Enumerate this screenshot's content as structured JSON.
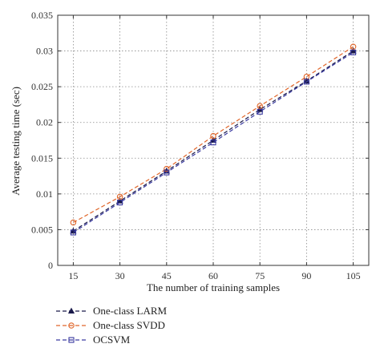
{
  "chart_data": {
    "type": "line",
    "title": "",
    "xlabel": "The number of training samples",
    "ylabel": "Average testing time (sec)",
    "x": [
      15,
      30,
      45,
      60,
      75,
      90,
      105
    ],
    "x_tick_labels": [
      "15",
      "30",
      "45",
      "60",
      "75",
      "90",
      "105"
    ],
    "y_ticks": [
      0,
      0.005,
      0.01,
      0.015,
      0.02,
      0.025,
      0.03,
      0.035
    ],
    "y_tick_labels": [
      "0",
      "0.005",
      "0.01",
      "0.015",
      "0.02",
      "0.025",
      "0.03",
      "0.035"
    ],
    "xlim": [
      10,
      110
    ],
    "ylim": [
      0,
      0.035
    ],
    "grid": true,
    "legend_position": "bottom-left below plot",
    "series": [
      {
        "name": "One-class LARM",
        "color": "#1a1a4a",
        "marker": "triangle",
        "dash": "dashed",
        "values": [
          0.0048,
          0.009,
          0.0132,
          0.0175,
          0.0218,
          0.0258,
          0.03
        ]
      },
      {
        "name": "One-class SVDD",
        "color": "#e0662a",
        "marker": "circle",
        "dash": "dashed",
        "values": [
          0.006,
          0.0096,
          0.0135,
          0.0181,
          0.0223,
          0.0264,
          0.0306
        ]
      },
      {
        "name": "OCSVM",
        "color": "#3a3aa0",
        "marker": "square",
        "dash": "dashed",
        "values": [
          0.0046,
          0.0088,
          0.013,
          0.0172,
          0.0215,
          0.0257,
          0.0298
        ]
      }
    ]
  }
}
